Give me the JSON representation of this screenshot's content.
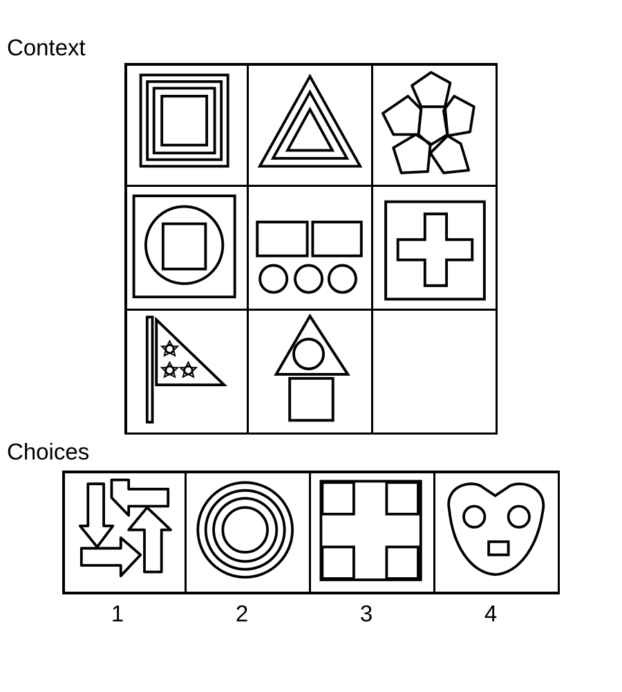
{
  "context_label": "Context",
  "choices_label": "Choices",
  "context_cells": [
    {
      "icon": "concentric-squares-icon"
    },
    {
      "icon": "concentric-triangles-icon"
    },
    {
      "icon": "pentagon-flower-icon"
    },
    {
      "icon": "square-in-circle-in-square-icon"
    },
    {
      "icon": "rectangles-and-circles-icon"
    },
    {
      "icon": "cross-in-square-icon"
    },
    {
      "icon": "flag-with-stars-icon"
    },
    {
      "icon": "triangle-circle-square-icon"
    },
    {
      "icon": "empty-cell"
    }
  ],
  "choices": [
    {
      "number": "1",
      "icon": "four-arrows-icon"
    },
    {
      "number": "2",
      "icon": "concentric-circles-icon"
    },
    {
      "number": "3",
      "icon": "cross-with-four-squares-icon"
    },
    {
      "number": "4",
      "icon": "heart-face-icon"
    }
  ]
}
